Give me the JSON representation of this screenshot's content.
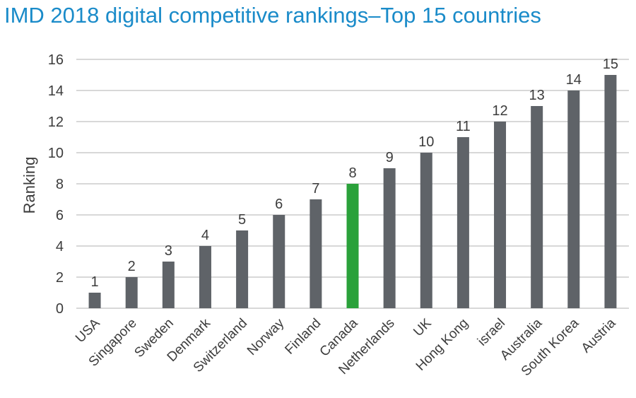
{
  "chart_data": {
    "type": "bar",
    "title": "IMD 2018 digital competitive rankings–Top 15 countries",
    "xlabel": "",
    "ylabel": "Ranking",
    "ylim": [
      0,
      16
    ],
    "yticks": [
      0,
      2,
      4,
      6,
      8,
      10,
      12,
      14,
      16
    ],
    "grid": true,
    "categories": [
      "USA",
      "Singapore",
      "Sweden",
      "Denmark",
      "Switzerland",
      "Norway",
      "Finland",
      "Canada",
      "Netherlands",
      "UK",
      "Hong Kong",
      "israel",
      "Australia",
      "South Korea",
      "Austria"
    ],
    "values": [
      1,
      2,
      3,
      4,
      5,
      6,
      7,
      8,
      9,
      10,
      11,
      12,
      13,
      14,
      15
    ],
    "bar_color": "#5f6368",
    "highlight_color": "#2aa13a",
    "highlight_category": "Canada",
    "title_color": "#1a8bc9",
    "text_color": "#3c3c3c",
    "grid_color": "#cccccc"
  }
}
